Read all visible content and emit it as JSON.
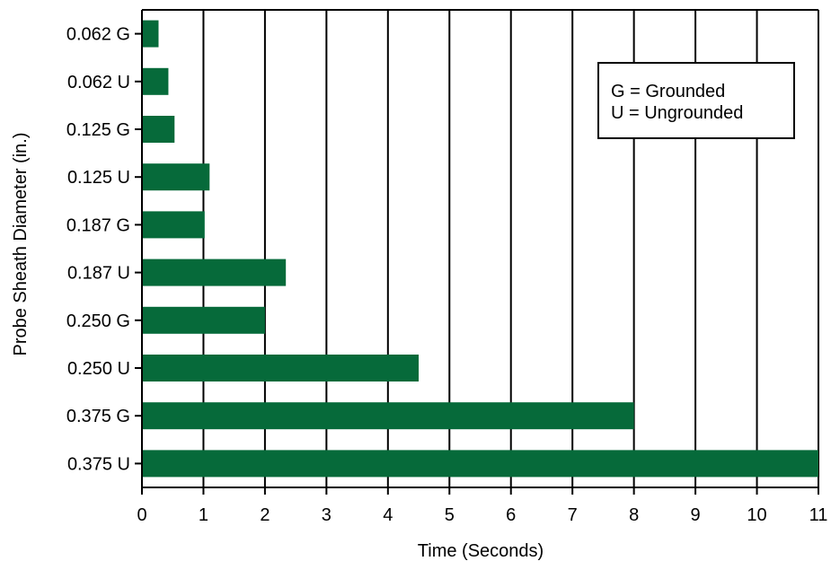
{
  "chart_data": {
    "type": "bar",
    "orientation": "horizontal",
    "categories": [
      "0.062 G",
      "0.062 U",
      "0.125 G",
      "0.125 U",
      "0.187 G",
      "0.187 U",
      "0.250 G",
      "0.250 U",
      "0.375 G",
      "0.375 U"
    ],
    "values": [
      0.27,
      0.43,
      0.53,
      1.1,
      1.02,
      2.34,
      2.0,
      4.5,
      8.0,
      11.0
    ],
    "xlabel": "Time (Seconds)",
    "ylabel": "Probe Sheath Diameter (in.)",
    "xlim": [
      0,
      11
    ],
    "xticks": [
      "0",
      "1",
      "2",
      "3",
      "4",
      "5",
      "6",
      "7",
      "8",
      "9",
      "10",
      "11"
    ],
    "grid": "vertical",
    "legend": {
      "placement": "top-right",
      "lines": [
        "G = Grounded",
        "U = Ungrounded"
      ]
    },
    "colors": {
      "bar": "#066a3a",
      "grid": "#000000"
    }
  }
}
